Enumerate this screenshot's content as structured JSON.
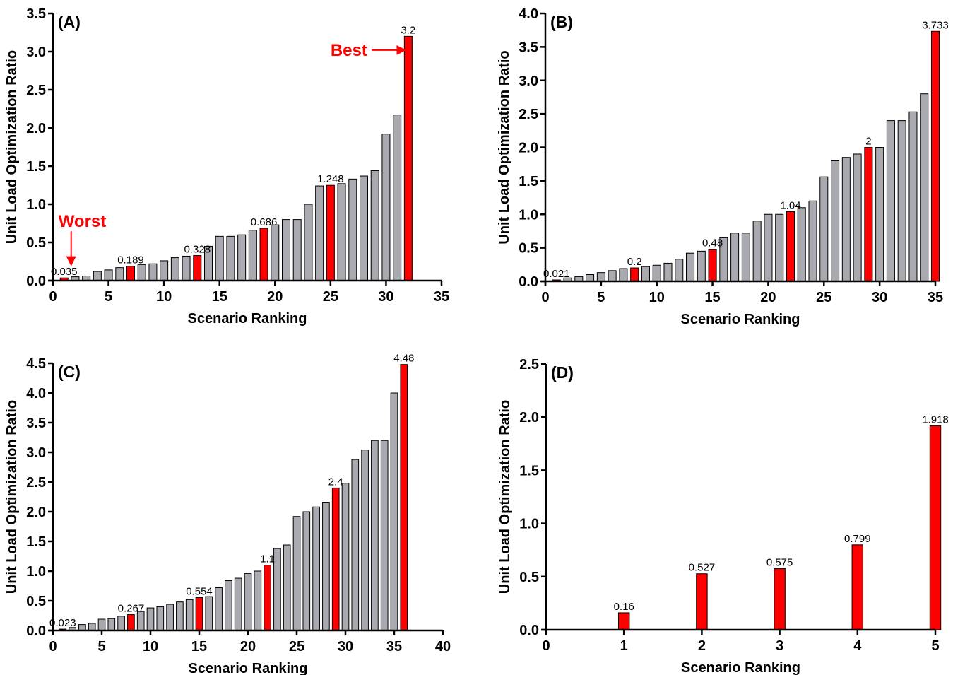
{
  "figure": {
    "colors": {
      "highlight": "#ff0000",
      "bar": "#a9a9b0",
      "outline": "#000000"
    }
  },
  "chart_data": [
    {
      "type": "bar",
      "panel_label": "(A)",
      "xlabel": "Scenario Ranking",
      "ylabel": "Unit Load Optimization Ratio",
      "xlim": [
        0,
        35
      ],
      "ylim": [
        0,
        3.5
      ],
      "xticks": [
        0,
        5,
        10,
        15,
        20,
        25,
        30,
        35
      ],
      "yticks": [
        0.0,
        0.5,
        1.0,
        1.5,
        2.0,
        2.5,
        3.0,
        3.5
      ],
      "ytick_decimals": 1,
      "bar_width": 0.7,
      "x": [
        1,
        2,
        3,
        4,
        5,
        6,
        7,
        8,
        9,
        10,
        11,
        12,
        13,
        14,
        15,
        16,
        17,
        18,
        19,
        20,
        21,
        22,
        23,
        24,
        25,
        26,
        27,
        28,
        29,
        30,
        31,
        32
      ],
      "values": [
        0.035,
        0.05,
        0.06,
        0.12,
        0.14,
        0.17,
        0.189,
        0.21,
        0.22,
        0.26,
        0.3,
        0.32,
        0.328,
        0.45,
        0.58,
        0.58,
        0.6,
        0.66,
        0.686,
        0.73,
        0.8,
        0.8,
        1.0,
        1.24,
        1.248,
        1.27,
        1.33,
        1.37,
        1.44,
        1.92,
        2.17,
        3.2
      ],
      "highlighted": [
        1,
        7,
        13,
        19,
        25,
        32
      ],
      "data_labels": [
        {
          "x": 1,
          "text": "0.035"
        },
        {
          "x": 7,
          "text": "0.189"
        },
        {
          "x": 13,
          "text": "0.328"
        },
        {
          "x": 19,
          "text": "0.686"
        },
        {
          "x": 25,
          "text": "1.248"
        },
        {
          "x": 32,
          "text": "3.2"
        }
      ],
      "annotations": [
        {
          "text": "Worst",
          "x": 1,
          "y": 0.035,
          "arrow": "down"
        },
        {
          "text": "Best",
          "x": 32,
          "y": 3.2,
          "arrow": "right"
        }
      ]
    },
    {
      "type": "bar",
      "panel_label": "(B)",
      "xlabel": "Scenario Ranking",
      "ylabel": "Unit Load Optimization Ratio",
      "xlim": [
        0,
        35
      ],
      "ylim": [
        0,
        4.0
      ],
      "xticks": [
        0,
        5,
        10,
        15,
        20,
        25,
        30,
        35
      ],
      "yticks": [
        0.0,
        0.5,
        1.0,
        1.5,
        2.0,
        2.5,
        3.0,
        3.5,
        4.0
      ],
      "ytick_decimals": 1,
      "bar_width": 0.7,
      "x": [
        1,
        2,
        3,
        4,
        5,
        6,
        7,
        8,
        9,
        10,
        11,
        12,
        13,
        14,
        15,
        16,
        17,
        18,
        19,
        20,
        21,
        22,
        23,
        24,
        25,
        26,
        27,
        28,
        29,
        30,
        31,
        32,
        33,
        34,
        35
      ],
      "values": [
        0.021,
        0.05,
        0.07,
        0.1,
        0.13,
        0.16,
        0.19,
        0.2,
        0.22,
        0.24,
        0.27,
        0.33,
        0.42,
        0.45,
        0.48,
        0.65,
        0.72,
        0.72,
        0.9,
        1.0,
        1.0,
        1.04,
        1.1,
        1.2,
        1.56,
        1.8,
        1.85,
        1.9,
        2.0,
        2.0,
        2.4,
        2.4,
        2.53,
        2.8,
        3.733
      ],
      "highlighted": [
        1,
        8,
        15,
        22,
        29,
        35
      ],
      "data_labels": [
        {
          "x": 1,
          "text": "0.021"
        },
        {
          "x": 8,
          "text": "0.2"
        },
        {
          "x": 15,
          "text": "0.48"
        },
        {
          "x": 22,
          "text": "1.04"
        },
        {
          "x": 29,
          "text": "2"
        },
        {
          "x": 35,
          "text": "3.733"
        }
      ]
    },
    {
      "type": "bar",
      "panel_label": "(C)",
      "xlabel": "Scenario Ranking",
      "ylabel": "Unit Load Optimization Ratio",
      "xlim": [
        0,
        40
      ],
      "ylim": [
        0,
        4.5
      ],
      "xticks": [
        0,
        5,
        10,
        15,
        20,
        25,
        30,
        35,
        40
      ],
      "yticks": [
        0.0,
        0.5,
        1.0,
        1.5,
        2.0,
        2.5,
        3.0,
        3.5,
        4.0,
        4.5
      ],
      "ytick_decimals": 1,
      "bar_width": 0.7,
      "x": [
        1,
        2,
        3,
        4,
        5,
        6,
        7,
        8,
        9,
        10,
        11,
        12,
        13,
        14,
        15,
        16,
        17,
        18,
        19,
        20,
        21,
        22,
        23,
        24,
        25,
        26,
        27,
        28,
        29,
        30,
        31,
        32,
        33,
        34,
        35,
        36
      ],
      "values": [
        0.023,
        0.05,
        0.1,
        0.12,
        0.19,
        0.2,
        0.24,
        0.267,
        0.32,
        0.38,
        0.4,
        0.44,
        0.48,
        0.52,
        0.554,
        0.57,
        0.72,
        0.84,
        0.88,
        0.96,
        1.0,
        1.1,
        1.38,
        1.44,
        1.92,
        2.0,
        2.08,
        2.16,
        2.4,
        2.48,
        2.88,
        3.04,
        3.2,
        3.2,
        4.0,
        4.48
      ],
      "highlighted": [
        1,
        8,
        15,
        22,
        29,
        36
      ],
      "data_labels": [
        {
          "x": 1,
          "text": "0.023"
        },
        {
          "x": 8,
          "text": "0.267"
        },
        {
          "x": 15,
          "text": "0.554"
        },
        {
          "x": 22,
          "text": "1.1"
        },
        {
          "x": 29,
          "text": "2.4"
        },
        {
          "x": 36,
          "text": "4.48"
        }
      ]
    },
    {
      "type": "bar",
      "panel_label": "(D)",
      "xlabel": "Scenario Ranking",
      "ylabel": "Unit Load Optimization Ratio",
      "xlim": [
        0,
        5
      ],
      "ylim": [
        0,
        2.5
      ],
      "xticks": [
        0,
        1,
        2,
        3,
        4,
        5
      ],
      "yticks": [
        0.0,
        0.5,
        1.0,
        1.5,
        2.0,
        2.5
      ],
      "ytick_decimals": 1,
      "bar_width": 0.14,
      "x": [
        1,
        2,
        3,
        4,
        5
      ],
      "values": [
        0.16,
        0.527,
        0.575,
        0.799,
        1.918
      ],
      "highlighted": [
        1,
        2,
        3,
        4,
        5
      ],
      "data_labels": [
        {
          "x": 1,
          "text": "0.16"
        },
        {
          "x": 2,
          "text": "0.527"
        },
        {
          "x": 3,
          "text": "0.575"
        },
        {
          "x": 4,
          "text": "0.799"
        },
        {
          "x": 5,
          "text": "1.918"
        }
      ]
    }
  ]
}
